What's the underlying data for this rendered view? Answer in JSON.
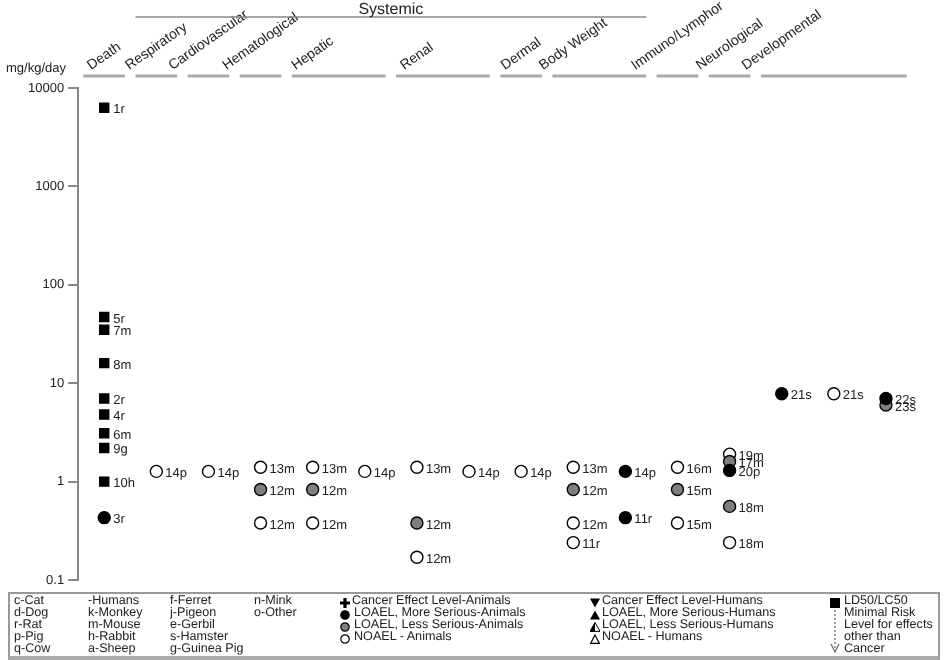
{
  "chart_data": {
    "type": "scatter",
    "ylabel": "mg/kg/day",
    "log": "y",
    "ylim": [
      0.1,
      10000
    ],
    "yticks": [
      0.1,
      1,
      10,
      100,
      1000,
      10000
    ],
    "grid": false,
    "legend": "bottom",
    "categories": [
      "Death",
      "Respiratory",
      "Cardiovascular",
      "Hematological",
      "Hepatic",
      null,
      "Renal",
      null,
      "Dermal",
      "Body Weight",
      null,
      "Immuno/Lymphor",
      "Neurological",
      "Developmental",
      null,
      null
    ],
    "annotations": [
      "Systemic",
      "c-Cat",
      "d-Dog",
      "r-Rat",
      "p-Pig",
      "q-Cow",
      "-Humans",
      "k-Monkey",
      "m-Mouse",
      "h-Rabbit",
      "a-Sheep",
      "f-Ferret",
      "j-Pigeon",
      "e-Gerbil",
      "s-Hamster",
      "g-Guinea Pig",
      "n-Mink",
      "o-Other",
      "Cancer Effect Level-Animals",
      "Cancer Effect Level-Humans",
      "LOAEL, More Serious-Humans",
      "LOAEL, Less Serious-Humans",
      "NOAEL - Humans",
      "Minimal Risk Level for effects other than Cancer",
      {
        "text": "1r",
        "x": "Death",
        "y": 6300
      },
      {
        "text": "5r",
        "x": "Death",
        "y": 47
      },
      {
        "text": "7m",
        "x": "Death",
        "y": 35
      },
      {
        "text": "8m",
        "x": "Death",
        "y": 16
      },
      {
        "text": "2r",
        "x": "Death",
        "y": 7
      },
      {
        "text": "4r",
        "x": "Death",
        "y": 4.8
      },
      {
        "text": "6m",
        "x": "Death",
        "y": 3.1
      },
      {
        "text": "9g",
        "x": "Death",
        "y": 2.2
      },
      {
        "text": "10h",
        "x": "Death",
        "y": 1
      },
      {
        "text": "3r",
        "x": "Death",
        "y": 0.43
      },
      {
        "text": "14p",
        "x": "Respiratory",
        "y": 1.27
      },
      {
        "text": "14p",
        "x": "Cardiovascular",
        "y": 1.27
      },
      {
        "text": "13m",
        "x": "Hematological",
        "y": 1.4
      },
      {
        "text": "12m",
        "x": "Hematological",
        "y": 0.83
      },
      {
        "text": "12m",
        "x": "Hematological",
        "y": 0.38
      },
      {
        "text": "13m",
        "x": "Hepatic",
        "y": 1.4
      },
      {
        "text": "12m",
        "x": "Hepatic",
        "y": 0.83
      },
      {
        "text": "12m",
        "x": "Hepatic",
        "y": 0.38
      },
      "14p",
      {
        "text": "13m",
        "x": "Renal",
        "y": 1.4
      },
      {
        "text": "12m",
        "x": "Renal",
        "y": 0.38
      },
      {
        "text": "12m",
        "x": "Renal",
        "y": 0.17
      },
      "14p",
      {
        "text": "14p",
        "x": "Dermal",
        "y": 1.27
      },
      {
        "text": "13m",
        "x": "Body Weight",
        "y": 1.4
      },
      {
        "text": "12m",
        "x": "Body Weight",
        "y": 0.83
      },
      {
        "text": "12m",
        "x": "Body Weight",
        "y": 0.38
      },
      {
        "text": "11r",
        "x": "Body Weight",
        "y": 0.24
      },
      "14p",
      "11r",
      {
        "text": "16m",
        "x": "Immuno/Lymphor",
        "y": 1.4
      },
      {
        "text": "15m",
        "x": "Immuno/Lymphor",
        "y": 0.83
      },
      {
        "text": "15m",
        "x": "Immuno/Lymphor",
        "y": 0.38
      },
      {
        "text": "19m",
        "x": "Neurological",
        "y": 1.9
      },
      {
        "text": "17m",
        "x": "Neurological",
        "y": 1.6
      },
      {
        "text": "20p",
        "x": "Neurological",
        "y": 1.3
      },
      {
        "text": "18m",
        "x": "Neurological",
        "y": 0.56
      },
      {
        "text": "18m",
        "x": "Neurological",
        "y": 0.24
      },
      {
        "text": "21s",
        "x": "Developmental",
        "y": 7.8
      },
      "21s",
      "22s",
      "23s"
    ],
    "series": [
      {
        "name": "LD50/LC50",
        "color": "#000000",
        "marker": "square",
        "values": [
          6300,
          null,
          null,
          null,
          null,
          null,
          null,
          null,
          null,
          null,
          null,
          null,
          null,
          null,
          null,
          null
        ]
      },
      {
        "color": "#000000",
        "marker": "square",
        "values": [
          47,
          null,
          null,
          null,
          null,
          null,
          null,
          null,
          null,
          null,
          null,
          null,
          null,
          null,
          null,
          null
        ]
      },
      {
        "color": "#000000",
        "marker": "square",
        "values": [
          35,
          null,
          null,
          null,
          null,
          null,
          null,
          null,
          null,
          null,
          null,
          null,
          null,
          null,
          null,
          null
        ]
      },
      {
        "color": "#000000",
        "marker": "square",
        "values": [
          16,
          null,
          null,
          null,
          null,
          null,
          null,
          null,
          null,
          null,
          null,
          null,
          null,
          null,
          null,
          null
        ]
      },
      {
        "color": "#000000",
        "marker": "square",
        "values": [
          7,
          null,
          null,
          null,
          null,
          null,
          null,
          null,
          null,
          null,
          null,
          null,
          null,
          null,
          null,
          null
        ]
      },
      {
        "color": "#000000",
        "marker": "square",
        "values": [
          4.8,
          null,
          null,
          null,
          null,
          null,
          null,
          null,
          null,
          null,
          null,
          null,
          null,
          null,
          null,
          null
        ]
      },
      {
        "color": "#000000",
        "marker": "square",
        "values": [
          3.1,
          null,
          null,
          null,
          null,
          null,
          null,
          null,
          null,
          null,
          null,
          null,
          null,
          null,
          null,
          null
        ]
      },
      {
        "color": "#000000",
        "marker": "square",
        "values": [
          2.2,
          null,
          null,
          null,
          null,
          null,
          null,
          null,
          null,
          null,
          null,
          null,
          null,
          null,
          null,
          null
        ]
      },
      {
        "color": "#000000",
        "marker": "square",
        "values": [
          1,
          null,
          null,
          null,
          null,
          null,
          null,
          null,
          null,
          null,
          null,
          null,
          null,
          null,
          null,
          null
        ]
      },
      {
        "name": "LOAEL, More Serious-Animals",
        "color": "#000000",
        "marker": "circle",
        "values": [
          0.43,
          null,
          null,
          null,
          null,
          null,
          null,
          null,
          null,
          null,
          1.27,
          null,
          1.3,
          7.8,
          null,
          7
        ]
      },
      {
        "color": "#000000",
        "marker": "circle",
        "values": [
          null,
          null,
          null,
          null,
          null,
          null,
          null,
          null,
          null,
          null,
          0.43,
          null,
          null,
          null,
          null,
          null
        ]
      },
      {
        "name": "LOAEL, Less Serious-Animals",
        "color": "#7f7f7f",
        "marker": "circle",
        "values": [
          null,
          null,
          null,
          0.83,
          0.83,
          null,
          0.38,
          null,
          null,
          0.83,
          null,
          0.83,
          1.6,
          null,
          null,
          6
        ]
      },
      {
        "color": "#7f7f7f",
        "marker": "circle",
        "values": [
          null,
          null,
          null,
          null,
          null,
          null,
          null,
          null,
          null,
          null,
          null,
          null,
          0.56,
          null,
          null,
          null
        ]
      },
      {
        "name": "NOAEL - Animals",
        "color": "#ffffff",
        "marker": "circle",
        "values": [
          null,
          1.27,
          1.27,
          null,
          null,
          1.27,
          null,
          1.27,
          1.27,
          null,
          null,
          null,
          null,
          null,
          7.8,
          null
        ]
      },
      {
        "color": "#ffffff",
        "marker": "circle",
        "values": [
          null,
          null,
          null,
          1.4,
          1.4,
          null,
          1.4,
          null,
          null,
          1.4,
          null,
          1.4,
          1.9,
          null,
          null,
          null
        ]
      },
      {
        "color": "#ffffff",
        "marker": "circle",
        "values": [
          null,
          null,
          null,
          0.38,
          0.38,
          null,
          0.17,
          null,
          null,
          0.38,
          null,
          0.38,
          0.24,
          null,
          null,
          null
        ]
      },
      {
        "color": "#ffffff",
        "marker": "circle",
        "values": [
          null,
          null,
          null,
          null,
          null,
          null,
          null,
          null,
          null,
          0.24,
          null,
          null,
          null,
          null,
          null,
          null
        ]
      }
    ]
  }
}
